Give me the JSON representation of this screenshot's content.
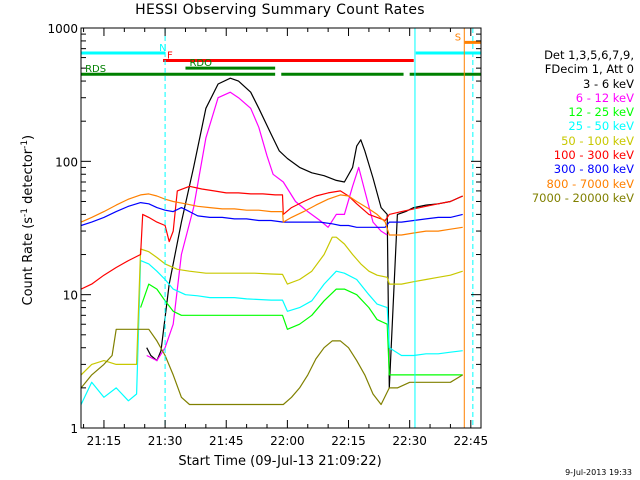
{
  "page": {
    "title": "HESSI Observing Summary Count Rates",
    "xlabel": "Start Time (09-Jul-13 21:09:22)",
    "ylabel_main": "Count Rate (s",
    "ylabel_sup1": "-1",
    "ylabel_mid": " detector",
    "ylabel_sup2": "-1",
    "ylabel_end": ")",
    "footer": "9-Jul-2013 19:33"
  },
  "legend": {
    "header1": "Det 1,3,5,6,7,9,",
    "header2": "FDecim 1, Att 0"
  },
  "colors": {
    "cyan": "#00ffff",
    "red": "#ff0000",
    "green": "#008000",
    "orange": "#ff8000"
  },
  "chart_data": {
    "type": "line",
    "title": "HESSI Observing Summary Count Rates",
    "xlabel": "Start Time (09-Jul-13 21:09:22)",
    "ylabel": "Count Rate (s-1 detector-1)",
    "x_unit": "minutes after 21:00 UT",
    "xlim": [
      69.37,
      167.5
    ],
    "ylim": [
      1,
      1000
    ],
    "y_scale": "log",
    "x_ticks": [
      {
        "value": 75,
        "label": "21:15"
      },
      {
        "value": 90,
        "label": "21:30"
      },
      {
        "value": 105,
        "label": "21:45"
      },
      {
        "value": 120,
        "label": "22:00"
      },
      {
        "value": 135,
        "label": "22:15"
      },
      {
        "value": 150,
        "label": "22:30"
      },
      {
        "value": 165,
        "label": "22:45"
      }
    ],
    "y_ticks": [
      {
        "value": 1,
        "label": "1"
      },
      {
        "value": 10,
        "label": "10"
      },
      {
        "value": 100,
        "label": "100"
      },
      {
        "value": 1000,
        "label": "1000"
      }
    ],
    "legend_position": "right",
    "series": [
      {
        "name": "3 - 6 keV",
        "color": "#000000",
        "x": [
          85.5,
          86.5,
          88,
          89,
          91,
          94,
          97,
          100,
          103,
          106,
          108,
          111,
          113,
          116,
          118,
          120,
          123,
          126,
          129,
          132,
          134,
          136,
          137,
          138,
          139,
          141,
          143,
          144.5,
          145,
          147,
          149,
          151,
          154,
          157,
          160,
          163
        ],
        "y": [
          4,
          3.5,
          3.2,
          3.8,
          12,
          35,
          90,
          250,
          380,
          420,
          400,
          330,
          250,
          160,
          120,
          105,
          90,
          82,
          78,
          72,
          70,
          90,
          130,
          145,
          120,
          75,
          45,
          40,
          2,
          40,
          42,
          45,
          47,
          48,
          50,
          55
        ]
      },
      {
        "name": "6 - 12 keV",
        "color": "#ff00ff",
        "x": [
          85.5,
          88,
          90,
          92,
          94,
          97,
          100,
          103,
          106,
          108,
          111,
          113,
          115,
          116.5,
          119,
          122,
          125,
          128,
          130,
          132,
          134,
          136,
          137.5,
          139,
          141,
          143,
          144.5
        ],
        "y": [
          3.5,
          3.2,
          4,
          6,
          20,
          45,
          150,
          300,
          330,
          300,
          250,
          180,
          110,
          80,
          70,
          50,
          42,
          36,
          32,
          40,
          40,
          65,
          90,
          60,
          35,
          30,
          28
        ]
      },
      {
        "name": "12 - 25 keV",
        "color": "#00ff00",
        "x": [
          84,
          86,
          88,
          90,
          92,
          94,
          97,
          100,
          103,
          106,
          109,
          112,
          115,
          117,
          118.8,
          120,
          123,
          126,
          129,
          132,
          134,
          137,
          140,
          142,
          144.5,
          145,
          150,
          155,
          160,
          163
        ],
        "y": [
          8,
          12,
          11,
          9,
          7.5,
          7,
          7,
          7,
          7,
          7,
          7,
          7,
          7,
          7,
          7,
          5.5,
          6,
          7,
          9,
          11,
          11,
          10,
          8,
          6.5,
          6,
          2.5,
          2.5,
          2.5,
          2.5,
          2.5
        ]
      },
      {
        "name": "25 - 50 keV",
        "color": "#00ffff",
        "x": [
          69.4,
          72,
          75,
          78,
          81,
          83,
          84,
          86,
          88,
          90,
          92,
          95,
          98,
          101,
          104,
          107,
          110,
          113,
          116,
          118.8,
          120,
          123,
          126,
          129,
          132,
          134,
          137,
          140,
          142,
          144.5,
          145,
          148,
          151,
          154,
          157,
          160,
          163
        ],
        "y": [
          1.5,
          2.2,
          1.7,
          2,
          1.6,
          1.8,
          18,
          17,
          15,
          13,
          11,
          10,
          9.8,
          9.5,
          9.5,
          9.5,
          9.3,
          9.2,
          9.1,
          9.1,
          7.5,
          8,
          9,
          12,
          15,
          14.5,
          13,
          10,
          8.5,
          8,
          4,
          3.5,
          3.5,
          3.6,
          3.6,
          3.7,
          3.8
        ]
      },
      {
        "name": "50 - 100 keV",
        "color": "#c8c800",
        "x": [
          69.4,
          72,
          75,
          78,
          81,
          83,
          84,
          86,
          88,
          90,
          93,
          96,
          100,
          104,
          108,
          112,
          116,
          118.8,
          120,
          123,
          126,
          129,
          131,
          132,
          134,
          136,
          138,
          140,
          142,
          144.5,
          145,
          148,
          151,
          154,
          157,
          160,
          163
        ],
        "y": [
          2.5,
          3,
          3.2,
          3,
          3,
          3,
          22,
          21,
          19,
          17,
          15.5,
          15,
          14.5,
          14.5,
          14.5,
          14.5,
          14.3,
          14.2,
          12,
          13,
          15,
          20,
          27,
          27,
          24,
          20,
          17,
          15,
          14,
          13.5,
          12,
          12,
          12.5,
          13,
          13.5,
          14,
          15
        ]
      },
      {
        "name": "100 - 300 keV",
        "color": "#ff0000",
        "x": [
          69.4,
          72,
          75,
          78,
          81,
          84,
          84.5,
          86,
          88,
          90,
          91,
          92,
          93,
          96,
          99,
          102,
          105,
          108,
          111,
          114,
          117,
          118.8,
          119,
          121,
          124,
          127,
          130,
          133,
          135,
          137,
          140,
          142,
          144,
          145,
          148,
          151,
          154,
          157,
          160,
          163
        ],
        "y": [
          11,
          12,
          14,
          16,
          18,
          20,
          40,
          38,
          35,
          33,
          25,
          30,
          60,
          65,
          62,
          60,
          58,
          58,
          57,
          57,
          56,
          56,
          40,
          45,
          50,
          55,
          58,
          60,
          55,
          48,
          40,
          38,
          36,
          40,
          42,
          44,
          46,
          48,
          50,
          55
        ]
      },
      {
        "name": "300 - 800 keV",
        "color": "#0000ff",
        "x": [
          69.4,
          72,
          75,
          78,
          81,
          84,
          86,
          88,
          90,
          92,
          94,
          96,
          98,
          101,
          104,
          107,
          110,
          113,
          116,
          119,
          122,
          125,
          128,
          131,
          133,
          135,
          137,
          140,
          142,
          144,
          145,
          148,
          151,
          154,
          157,
          160,
          163
        ],
        "y": [
          33,
          35,
          38,
          42,
          46,
          49,
          48,
          45,
          43,
          42,
          45,
          42,
          39,
          38,
          38,
          37,
          37,
          36,
          36,
          35,
          35,
          35,
          35,
          34,
          33,
          33,
          32,
          32,
          32,
          32,
          35,
          35,
          36,
          37,
          38,
          38,
          40
        ]
      },
      {
        "name": "800 - 7000 keV",
        "color": "#ff8000",
        "x": [
          69.4,
          72,
          75,
          78,
          81,
          84,
          86,
          88,
          90,
          92,
          95,
          98,
          101,
          104,
          107,
          110,
          113,
          116,
          118.8,
          119,
          121,
          124,
          127,
          130,
          133,
          135,
          137,
          140,
          142,
          144,
          145,
          148,
          151,
          154,
          157,
          160,
          163
        ],
        "y": [
          35,
          38,
          42,
          47,
          52,
          56,
          57,
          55,
          52,
          50,
          48,
          46,
          45,
          44,
          44,
          43,
          43,
          42,
          42,
          35,
          38,
          42,
          47,
          52,
          56,
          55,
          50,
          44,
          40,
          35,
          28,
          28,
          29,
          30,
          30,
          31,
          32
        ]
      },
      {
        "name": "7000 - 20000 keV",
        "color": "#808000",
        "x": [
          69.4,
          72,
          75,
          77,
          78,
          81,
          84,
          86,
          88,
          90,
          92,
          94,
          96,
          98,
          100,
          103,
          106,
          109,
          112,
          115,
          118,
          119,
          121,
          123,
          125,
          127,
          129,
          131,
          133,
          135,
          137,
          139,
          141,
          143,
          145,
          147,
          150,
          153,
          156,
          160,
          163
        ],
        "y": [
          2,
          2.5,
          3,
          3.5,
          5.5,
          5.5,
          5.5,
          5.5,
          4.5,
          3.5,
          2.5,
          1.7,
          1.5,
          1.5,
          1.5,
          1.5,
          1.5,
          1.5,
          1.5,
          1.5,
          1.5,
          1.5,
          1.7,
          2,
          2.5,
          3.3,
          4,
          4.5,
          4.5,
          4,
          3.2,
          2.5,
          1.8,
          1.5,
          2,
          2,
          2.2,
          2.2,
          2.2,
          2.2,
          2.5
        ]
      }
    ],
    "state_bars": [
      {
        "label": "N",
        "color": "#00ffff",
        "segments": [
          [
            69.4,
            90
          ],
          [
            151.5,
            167.5
          ]
        ],
        "y_level": 650
      },
      {
        "label": "F",
        "color": "#ff0000",
        "segments": [
          [
            89.5,
            151
          ]
        ],
        "y_level": 570
      },
      {
        "label": "RDO",
        "color": "#008000",
        "segments": [
          [
            95,
            117
          ]
        ],
        "y_level": 500
      },
      {
        "label": "RDS",
        "color": "#008000",
        "segments": [
          [
            69.4,
            117
          ],
          [
            118.5,
            148.5
          ],
          [
            150,
            167.5
          ]
        ],
        "y_level": 450
      },
      {
        "label": "S",
        "color": "#ff8000",
        "segments": [
          [
            163.5,
            167.5
          ]
        ],
        "y_level": 780
      }
    ],
    "vertical_markers": [
      {
        "x": 90,
        "color": "#00ffff",
        "style": "dashed"
      },
      {
        "x": 151.3,
        "color": "#00ffff",
        "style": "solid"
      },
      {
        "x": 163.4,
        "color": "#ff8000",
        "style": "solid"
      },
      {
        "x": 165.5,
        "color": "#00ffff",
        "style": "dashed"
      }
    ]
  }
}
